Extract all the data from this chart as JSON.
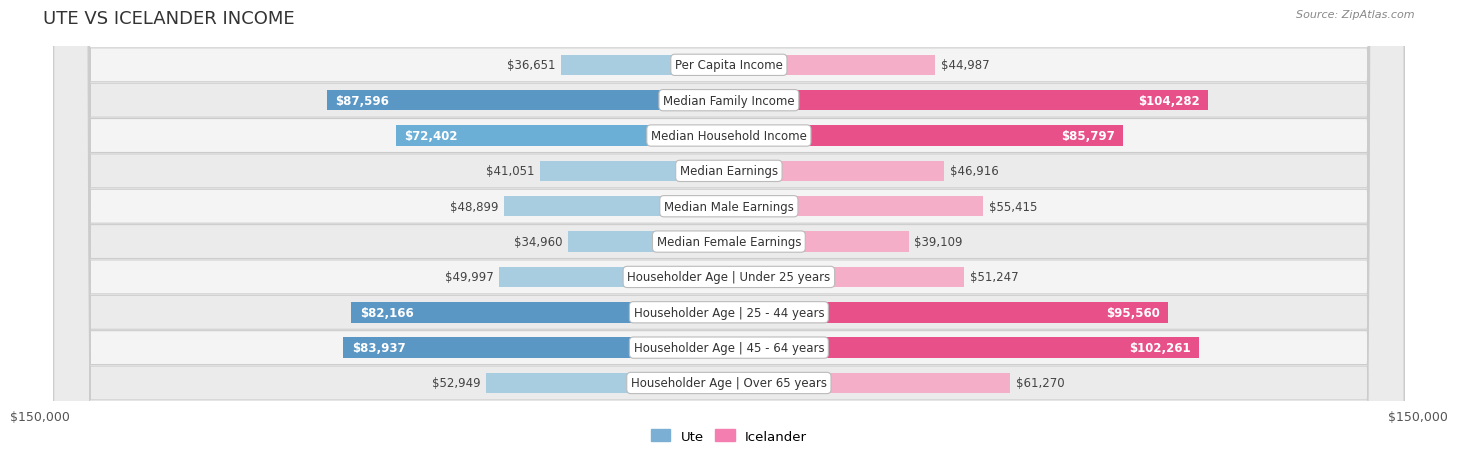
{
  "title": "UTE VS ICELANDER INCOME",
  "source": "Source: ZipAtlas.com",
  "categories": [
    "Per Capita Income",
    "Median Family Income",
    "Median Household Income",
    "Median Earnings",
    "Median Male Earnings",
    "Median Female Earnings",
    "Householder Age | Under 25 years",
    "Householder Age | 25 - 44 years",
    "Householder Age | 45 - 64 years",
    "Householder Age | Over 65 years"
  ],
  "ute_values": [
    36651,
    87596,
    72402,
    41051,
    48899,
    34960,
    49997,
    82166,
    83937,
    52949
  ],
  "icelander_values": [
    44987,
    104282,
    85797,
    46916,
    55415,
    39109,
    51247,
    95560,
    102261,
    61270
  ],
  "ute_labels": [
    "$36,651",
    "$87,596",
    "$72,402",
    "$41,051",
    "$48,899",
    "$34,960",
    "$49,997",
    "$82,166",
    "$83,937",
    "$52,949"
  ],
  "icelander_labels": [
    "$44,987",
    "$104,282",
    "$85,797",
    "$46,916",
    "$55,415",
    "$39,109",
    "$51,247",
    "$95,560",
    "$102,261",
    "$61,270"
  ],
  "ute_colors": [
    "#a8cce0",
    "#5b97c5",
    "#6baed6",
    "#a8cce0",
    "#a8cce0",
    "#a8cce0",
    "#a8cce0",
    "#5b97c5",
    "#5b97c5",
    "#a8cce0"
  ],
  "icelander_colors": [
    "#f4aec8",
    "#e8508a",
    "#e8508a",
    "#f4aec8",
    "#f4aec8",
    "#f4aec8",
    "#f4aec8",
    "#e8508a",
    "#e8508a",
    "#f4aec8"
  ],
  "ute_label_inside": [
    false,
    true,
    true,
    false,
    false,
    false,
    false,
    true,
    true,
    false
  ],
  "icelander_label_inside": [
    false,
    true,
    true,
    false,
    false,
    false,
    false,
    true,
    true,
    false
  ],
  "max_value": 150000,
  "title_fontsize": 13,
  "label_fontsize": 8.5,
  "axis_label": "$150,000",
  "legend_ute": "Ute",
  "legend_icelander": "Icelander",
  "row_bg_color": "#f0f0f0",
  "row_border_color": "#d0d0d0"
}
